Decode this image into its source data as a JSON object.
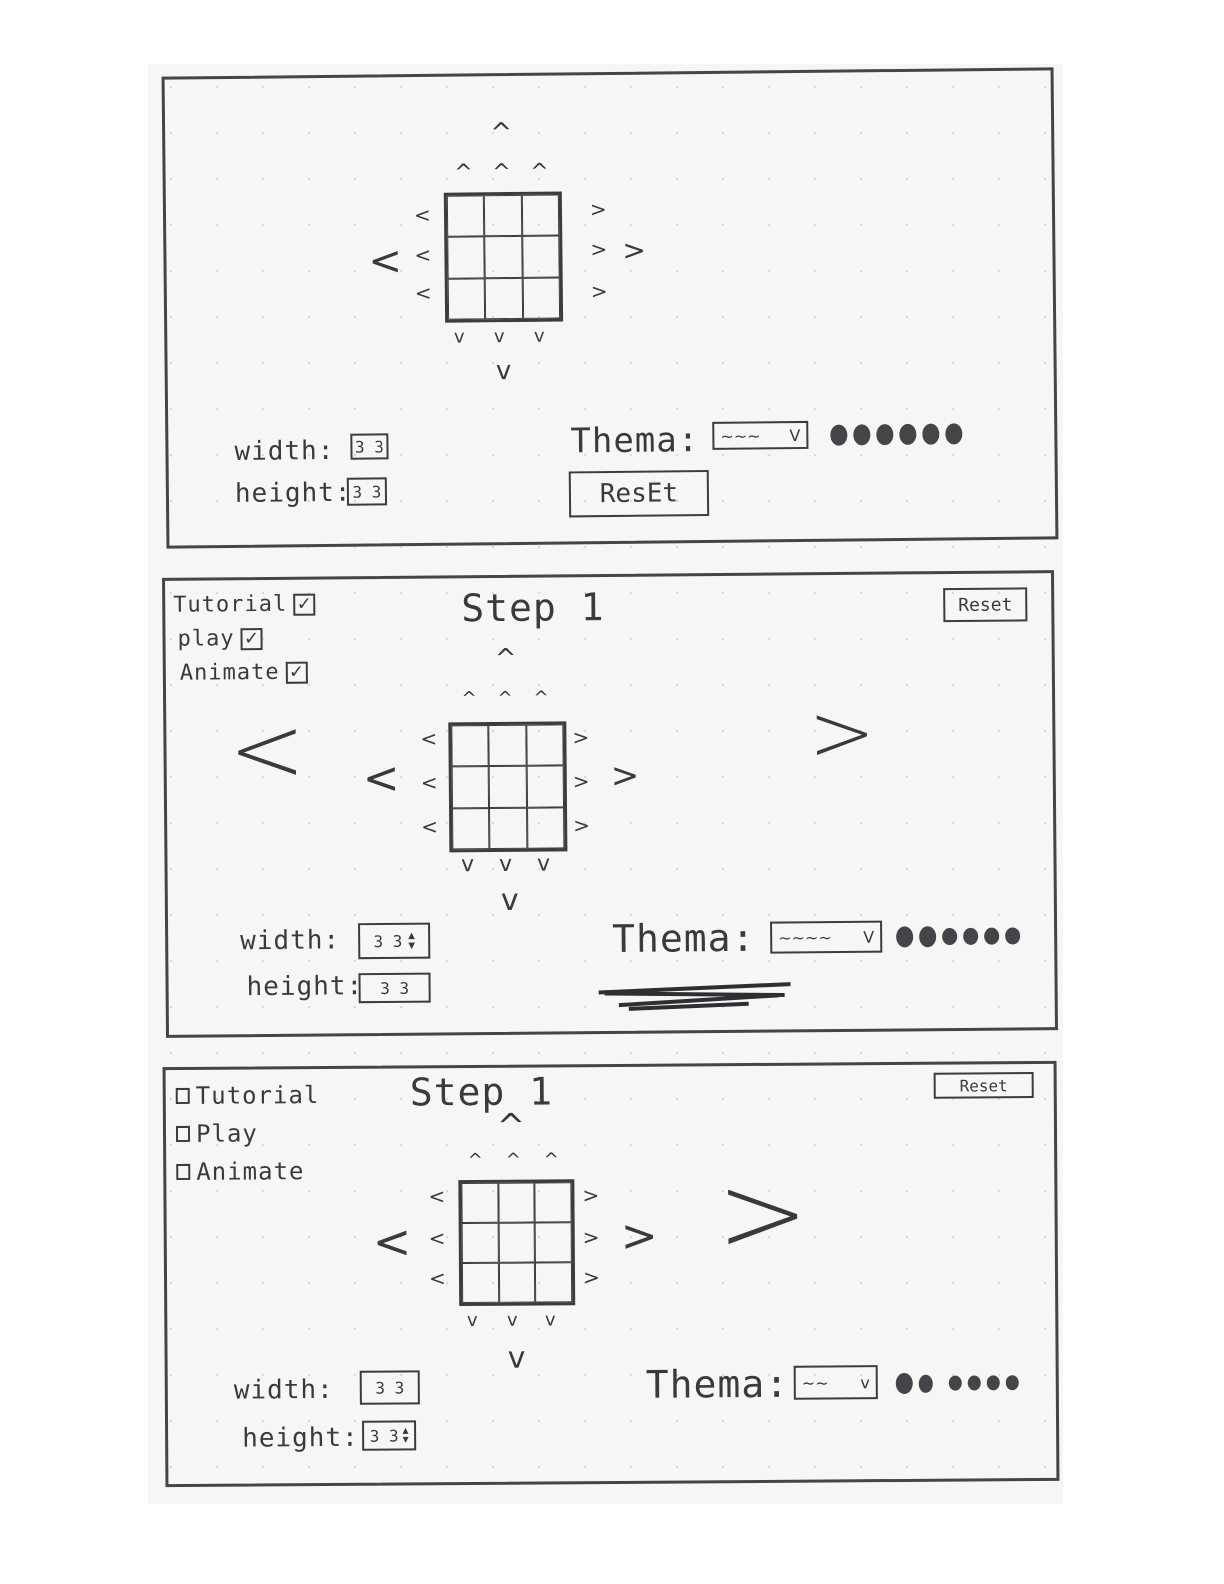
{
  "controls": {
    "up": "^",
    "down": "v",
    "left": "<",
    "right": ">"
  },
  "frame1": {
    "width_label": "width:",
    "width_value": "3 3",
    "height_label": "height:",
    "height_value": "3 3",
    "theme_label": "Thema:",
    "theme_select_value": "~~~",
    "theme_select_caret": "V",
    "reset_label": "ResEt",
    "swatch_count": 6
  },
  "frame2": {
    "step_label": "Step 1",
    "reset_label": "Reset",
    "options": [
      {
        "label": "Tutorial",
        "checked": true
      },
      {
        "label": "play",
        "checked": true
      },
      {
        "label": "Animate",
        "checked": true
      }
    ],
    "width_label": "width:",
    "width_value": "3 3",
    "height_label": "height:",
    "height_value": "3 3",
    "theme_label": "Thema:",
    "theme_select_value": "~~~~",
    "theme_select_caret": "V",
    "swatch_count": 6
  },
  "frame3": {
    "step_label": "Step 1",
    "reset_label": "Reset",
    "options": [
      {
        "label": "Tutorial",
        "checked": false
      },
      {
        "label": "Play",
        "checked": false
      },
      {
        "label": "Animate",
        "checked": false
      }
    ],
    "width_label": "width:",
    "width_value": "3 3",
    "height_label": "height:",
    "height_value": "3 3",
    "theme_label": "Thema:",
    "theme_select_value": "~~",
    "theme_select_caret": "v",
    "swatch_count": 6
  }
}
